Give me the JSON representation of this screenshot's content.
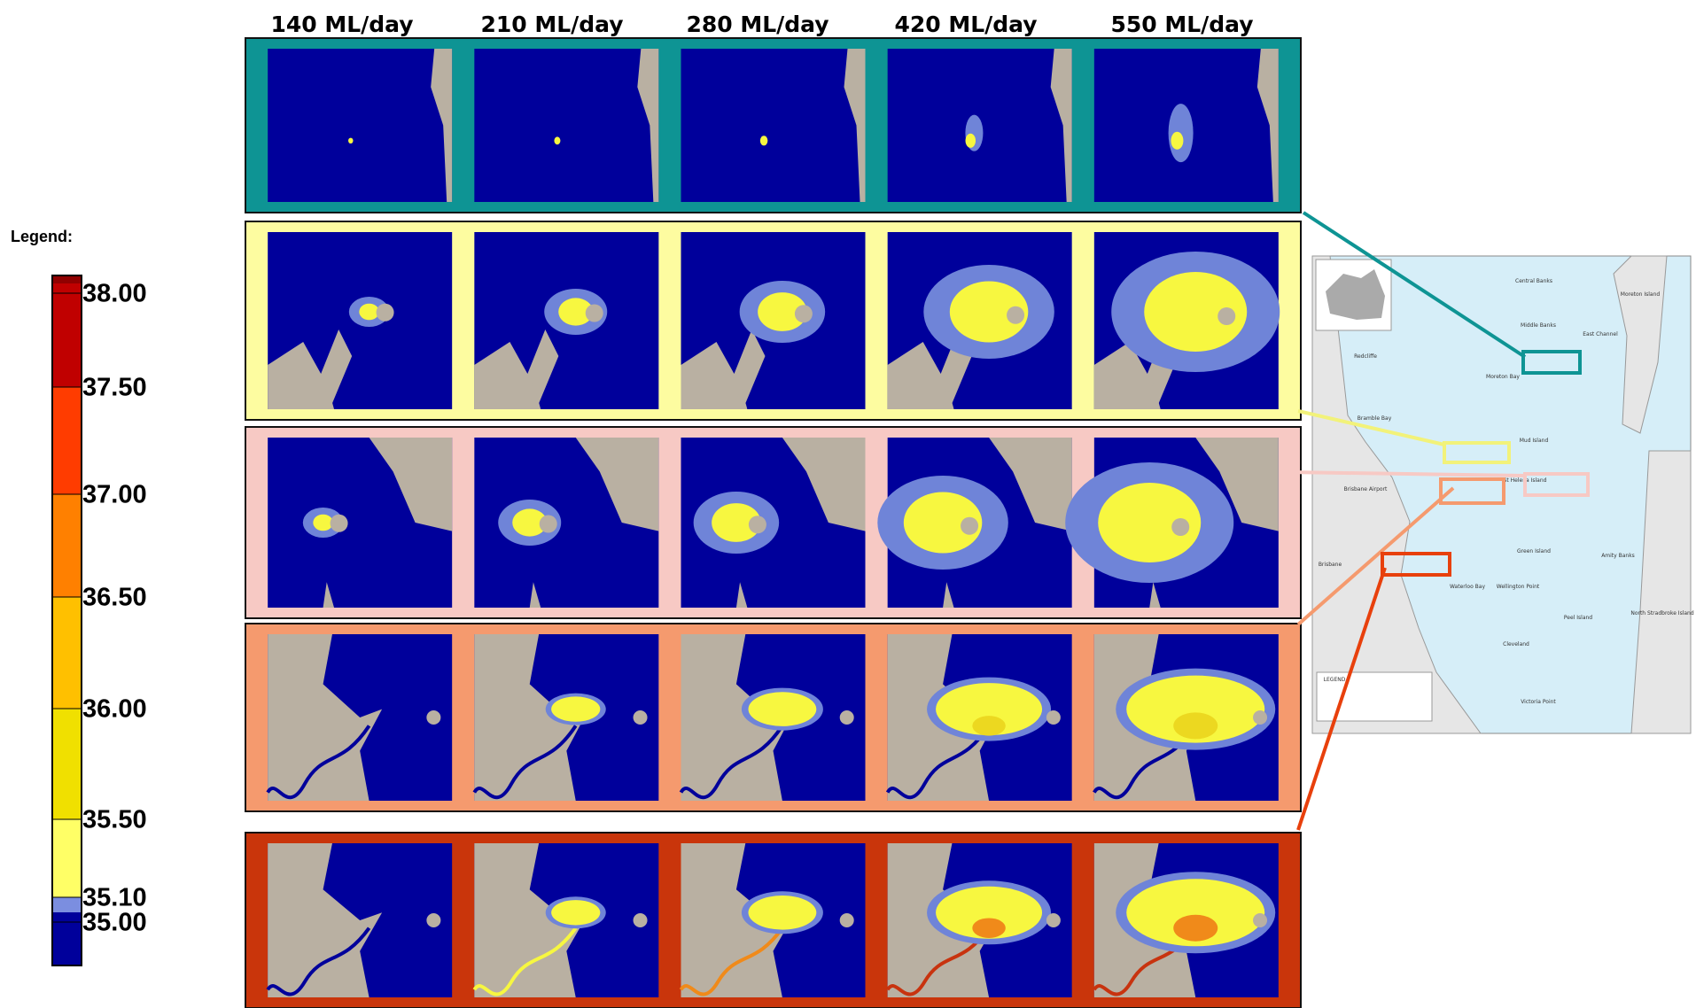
{
  "headers": [
    "140 ML/day",
    "210 ML/day",
    "280 ML/day",
    "420 ML/day",
    "550 ML/day"
  ],
  "legend": {
    "title": "Legend:",
    "labels": [
      "38.00",
      "37.50",
      "37.00",
      "36.50",
      "36.00",
      "35.50",
      "35.10",
      "35.00"
    ]
  },
  "map": {
    "labels": [
      "Central Banks",
      "Middle Banks",
      "Moreton Island",
      "Redcliffe",
      "Bramble Bay",
      "Moreton Bay",
      "East Channel",
      "Mud Island",
      "Brisbane Airport",
      "St Helena Island",
      "Green Island",
      "Amity Banks",
      "Brisbane",
      "Waterloo Bay",
      "Wellington Point",
      "Peel Island",
      "North Stradbroke Island",
      "Cleveland",
      "Victoria Point",
      "LEGEND"
    ]
  }
}
